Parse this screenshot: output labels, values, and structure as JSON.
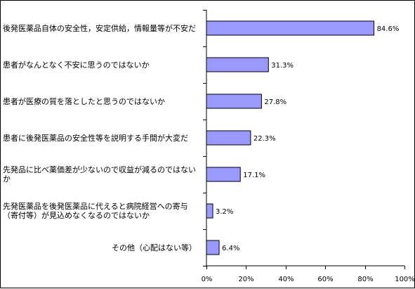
{
  "chart_data": {
    "type": "bar",
    "orientation": "horizontal",
    "categories": [
      "後発医薬品自体の安全性，安定供給，情報量等が不安だ",
      "患者がなんとなく不安に思うのではないか",
      "患者が医療の質を落としたと思うのではないか",
      "患者に後発医薬品の安全性等を説明する手間が大変だ",
      "先発品に比べ薬価差が少ないので収益が減るのではないか",
      "先発医薬品を後発医薬品に代えると病院経営への寄与（寄付等）が見込めなくなるのではないか",
      "その他（心配はない等）"
    ],
    "values": [
      84.6,
      31.3,
      27.8,
      22.3,
      17.1,
      3.2,
      6.4
    ],
    "value_labels": [
      "84.6%",
      "31.3%",
      "27.8%",
      "22.3%",
      "17.1%",
      "3.2%",
      "6.4%"
    ],
    "xlim": [
      0,
      100
    ],
    "x_ticks": [
      0,
      20,
      40,
      60,
      80,
      100
    ],
    "x_tick_labels": [
      "0%",
      "20%",
      "40%",
      "60%",
      "80%",
      "100%"
    ],
    "grid": false,
    "legend": "none",
    "bar_color": "#9999ff"
  }
}
